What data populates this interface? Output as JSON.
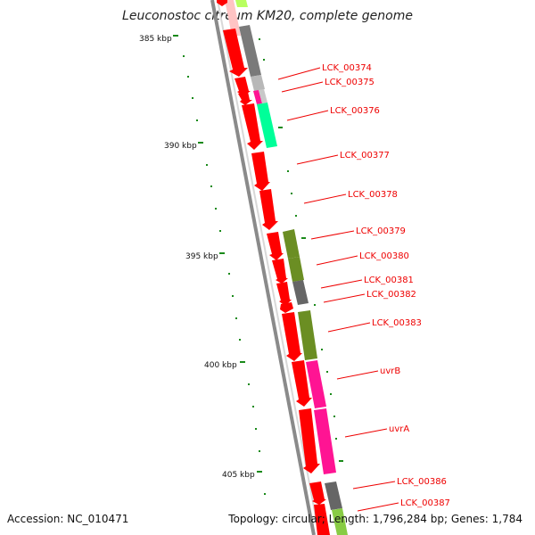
{
  "title": "Leuconostoc citreum KM20, complete genome",
  "footer": {
    "accession_label": "Accession:",
    "accession": "NC_010471",
    "topology_label": "Topology:",
    "topology": "circular",
    "length_label": "Length:",
    "length": "1,796,284 bp",
    "genes_label": "Genes:",
    "genes": "1,784"
  },
  "scale_labels": [
    "385 kbp",
    "390 kbp",
    "395 kbp",
    "400 kbp",
    "405 kbp"
  ],
  "gene_labels": [
    "LCK_00374",
    "LCK_00375",
    "LCK_00376",
    "LCK_00377",
    "LCK_00378",
    "LCK_00379",
    "LCK_00380",
    "LCK_00381",
    "LCK_00382",
    "LCK_00383",
    "uvrB",
    "uvrA",
    "LCK_00386",
    "LCK_00387"
  ],
  "colors": {
    "cds": "#ff0000",
    "label": "#ee0000",
    "tick": "#1a8a1a",
    "backbone": "#8a8a8a"
  }
}
